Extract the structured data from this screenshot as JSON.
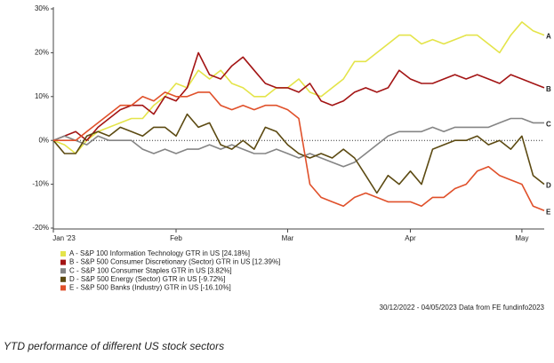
{
  "chart_data": {
    "type": "line",
    "categories": [
      "Jan '23",
      null,
      null,
      null,
      null,
      null,
      null,
      null,
      null,
      null,
      null,
      "Feb",
      null,
      null,
      null,
      null,
      null,
      null,
      null,
      null,
      null,
      "Mar",
      null,
      null,
      null,
      null,
      null,
      null,
      null,
      null,
      null,
      null,
      "Apr",
      null,
      null,
      null,
      null,
      null,
      null,
      null,
      null,
      null,
      "May",
      null,
      null
    ],
    "ylim": [
      -20,
      30
    ],
    "yticks": [
      {
        "value": -20,
        "label": "-20%"
      },
      {
        "value": -10,
        "label": "-10%"
      },
      {
        "value": 0,
        "label": "0%"
      },
      {
        "value": 10,
        "label": "10%"
      },
      {
        "value": 20,
        "label": "20%"
      },
      {
        "value": 30,
        "label": "30%"
      }
    ],
    "zero_line": true,
    "series": [
      {
        "name": "A - S&P 100 Information Technology GTR in US [24.18%]",
        "end_label": "A",
        "color": "#e4e44a",
        "values": [
          0,
          -1,
          -3,
          0,
          2,
          3,
          4,
          5,
          5,
          8,
          10,
          13,
          12,
          16,
          14,
          16,
          13,
          12,
          10,
          10,
          12,
          12,
          14,
          11,
          10,
          12,
          14,
          18,
          18,
          20,
          22,
          24,
          24,
          22,
          23,
          22,
          23,
          24,
          24,
          22,
          20,
          24,
          27,
          25,
          24
        ]
      },
      {
        "name": "B - S&P 500 Consumer Discretionary (Sector) GTR in US [12.39%]",
        "end_label": "B",
        "color": "#a31414",
        "values": [
          0,
          1,
          2,
          0,
          3,
          5,
          7,
          8,
          8,
          6,
          10,
          9,
          12,
          20,
          15,
          14,
          17,
          19,
          16,
          13,
          12,
          12,
          11,
          13,
          9,
          8,
          9,
          11,
          12,
          11,
          12,
          16,
          14,
          13,
          13,
          14,
          15,
          14,
          15,
          14,
          13,
          15,
          14,
          13,
          12
        ]
      },
      {
        "name": "C - S&P 100 Consumer Staples GTR in US [3.82%]",
        "end_label": "C",
        "color": "#858585",
        "values": [
          0,
          1,
          0,
          -1,
          1,
          0,
          0,
          0,
          -2,
          -3,
          -2,
          -3,
          -2,
          -2,
          -1,
          -2,
          -1,
          -2,
          -3,
          -3,
          -2,
          -3,
          -4,
          -3,
          -4,
          -5,
          -6,
          -5,
          -3,
          -1,
          1,
          2,
          2,
          2,
          3,
          2,
          3,
          3,
          3,
          3,
          4,
          5,
          5,
          4,
          4
        ]
      },
      {
        "name": "D - S&P 500 Energy (Sector) GTR in US [-9.72%]",
        "end_label": "D",
        "color": "#5c4a12",
        "values": [
          0,
          -3,
          -3,
          1,
          2,
          1,
          3,
          2,
          1,
          3,
          3,
          1,
          6,
          3,
          4,
          -1,
          -2,
          0,
          -2,
          3,
          2,
          -1,
          -3,
          -4,
          -3,
          -4,
          -2,
          -4,
          -8,
          -12,
          -8,
          -10,
          -7,
          -10,
          -2,
          -1,
          0,
          0,
          1,
          -1,
          0,
          -2,
          1,
          -8,
          -10
        ]
      },
      {
        "name": "E - S&P 500 Banks (Industry) GTR in US [-16.10%]",
        "end_label": "E",
        "color": "#e0502a",
        "values": [
          0,
          0,
          0,
          2,
          4,
          6,
          8,
          8,
          10,
          9,
          11,
          10,
          10,
          11,
          11,
          8,
          7,
          8,
          7,
          8,
          8,
          7,
          5,
          -10,
          -13,
          -14,
          -15,
          -13,
          -12,
          -13,
          -14,
          -14,
          -14,
          -15,
          -13,
          -13,
          -11,
          -10,
          -7,
          -6,
          -8,
          -9,
          -10,
          -15,
          -16
        ]
      }
    ],
    "footnote": "30/12/2022 - 04/05/2023 Data from FE fundinfo2023",
    "caption": "YTD performance of different US stock sectors"
  }
}
